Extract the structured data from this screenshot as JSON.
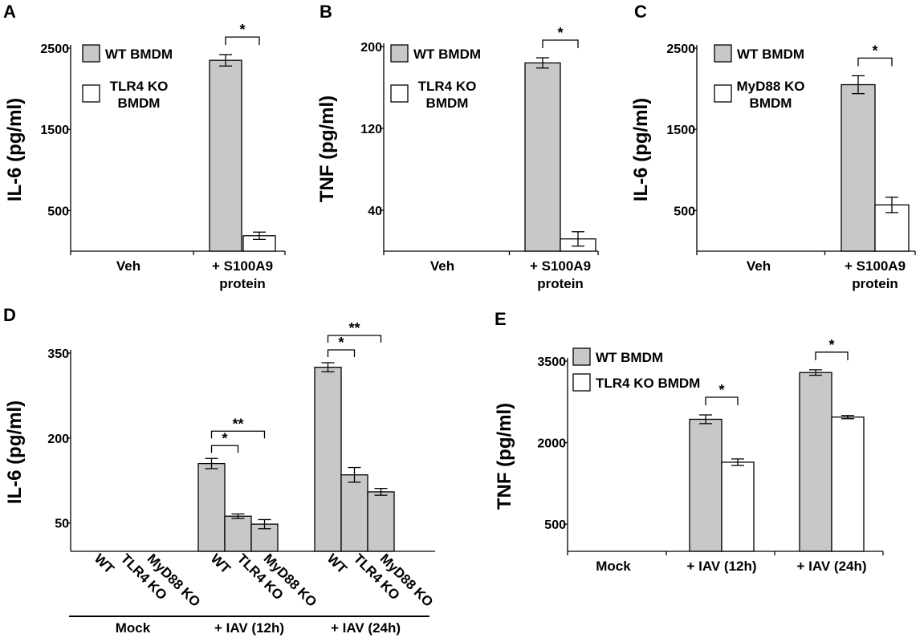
{
  "colors": {
    "wt": "#c8c8c8",
    "ko": "#ffffff",
    "stroke": "#000000"
  },
  "chart_data": [
    {
      "panel": "A",
      "type": "bar",
      "ylabel": "IL-6 (pg/ml)",
      "ylim": [
        0,
        2500
      ],
      "yticks": [
        500,
        1500,
        2500
      ],
      "categories": [
        {
          "lines": [
            "Veh"
          ]
        },
        {
          "lines": [
            "+ S100A9",
            "protein"
          ]
        }
      ],
      "series": [
        {
          "name": "WT BMDM",
          "color": "wt",
          "values": [
            0,
            2350
          ],
          "errors": [
            0,
            70
          ]
        },
        {
          "name": "TLR4 KO BMDM",
          "name_lines": [
            "TLR4 KO",
            "BMDM"
          ],
          "color": "ko",
          "values": [
            0,
            190
          ],
          "errors": [
            0,
            45
          ]
        }
      ],
      "significance": [
        {
          "category": 1,
          "from": 0,
          "to": 1,
          "label": "*"
        }
      ]
    },
    {
      "panel": "B",
      "type": "bar",
      "ylabel": "TNF (pg/ml)",
      "ylim": [
        0,
        200
      ],
      "yticks": [
        40,
        120,
        200
      ],
      "categories": [
        {
          "lines": [
            "Veh"
          ]
        },
        {
          "lines": [
            "+ S100A9",
            "protein"
          ]
        }
      ],
      "series": [
        {
          "name": "WT BMDM",
          "color": "wt",
          "values": [
            0,
            184
          ],
          "errors": [
            0,
            5
          ]
        },
        {
          "name": "TLR4 KO BMDM",
          "name_lines": [
            "TLR4 KO",
            "BMDM"
          ],
          "color": "ko",
          "values": [
            0,
            12
          ],
          "errors": [
            0,
            7
          ]
        }
      ],
      "significance": [
        {
          "category": 1,
          "from": 0,
          "to": 1,
          "label": "*"
        }
      ]
    },
    {
      "panel": "C",
      "type": "bar",
      "ylabel": "IL-6 (pg/ml)",
      "ylim": [
        0,
        2500
      ],
      "yticks": [
        500,
        1500,
        2500
      ],
      "categories": [
        {
          "lines": [
            "Veh"
          ]
        },
        {
          "lines": [
            "+ S100A9",
            "protein"
          ]
        }
      ],
      "series": [
        {
          "name": "WT BMDM",
          "color": "wt",
          "values": [
            0,
            2050
          ],
          "errors": [
            0,
            110
          ]
        },
        {
          "name": "MyD88 KO BMDM",
          "name_lines": [
            "MyD88 KO",
            "BMDM"
          ],
          "color": "ko",
          "values": [
            0,
            570
          ],
          "errors": [
            0,
            95
          ]
        }
      ],
      "significance": [
        {
          "category": 1,
          "from": 0,
          "to": 1,
          "label": "*"
        }
      ]
    },
    {
      "panel": "D",
      "type": "bar",
      "ylabel": "IL-6 (pg/ml)",
      "ylim": [
        0,
        350
      ],
      "yticks": [
        50,
        200,
        350
      ],
      "bar_labels": [
        "WT",
        "TLR4 KO",
        "MyD88 KO"
      ],
      "groups": [
        {
          "label": "Mock",
          "values": [
            0,
            0,
            0
          ],
          "errors": [
            0,
            0,
            0
          ]
        },
        {
          "label": "+ IAV (12h)",
          "values": [
            155,
            62,
            48
          ],
          "errors": [
            9,
            4,
            8
          ]
        },
        {
          "label": "+ IAV (24h)",
          "values": [
            325,
            135,
            105
          ],
          "errors": [
            8,
            13,
            6
          ]
        }
      ],
      "significance": [
        {
          "group": 1,
          "from": 0,
          "to": 1,
          "label": "*"
        },
        {
          "group": 1,
          "from": 0,
          "to": 2,
          "label": "**"
        },
        {
          "group": 2,
          "from": 0,
          "to": 1,
          "label": "*"
        },
        {
          "group": 2,
          "from": 0,
          "to": 2,
          "label": "**"
        }
      ]
    },
    {
      "panel": "E",
      "type": "bar",
      "ylabel": "TNF (pg/ml)",
      "ylim": [
        0,
        3500
      ],
      "yticks": [
        500,
        2000,
        3500
      ],
      "categories": [
        {
          "lines": [
            "Mock"
          ]
        },
        {
          "lines": [
            "+ IAV (12h)"
          ]
        },
        {
          "lines": [
            "+ IAV (24h)"
          ]
        }
      ],
      "series": [
        {
          "name": "WT BMDM",
          "color": "wt",
          "values": [
            0,
            2430,
            3290
          ],
          "errors": [
            0,
            80,
            50
          ]
        },
        {
          "name": "TLR4 KO BMDM",
          "name_lines": [
            "TLR4 KO BMDM"
          ],
          "color": "ko",
          "values": [
            0,
            1640,
            2470
          ],
          "errors": [
            0,
            60,
            30
          ]
        }
      ],
      "significance": [
        {
          "category": 1,
          "from": 0,
          "to": 1,
          "label": "*"
        },
        {
          "category": 2,
          "from": 0,
          "to": 1,
          "label": "*"
        }
      ]
    }
  ]
}
